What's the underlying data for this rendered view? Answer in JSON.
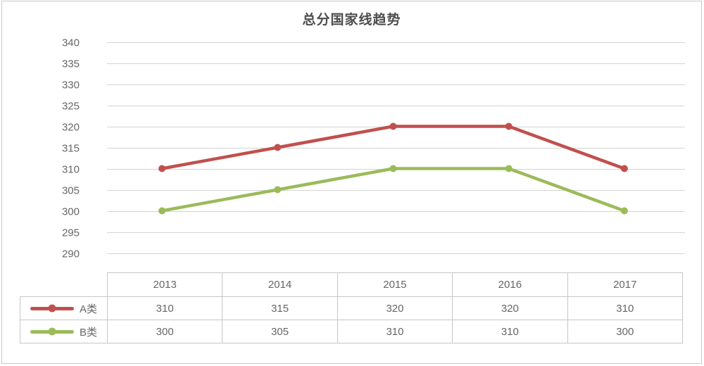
{
  "widget": {
    "title": "总分国家线趋势"
  },
  "chart_data": {
    "type": "line",
    "title": "总分国家线趋势",
    "categories": [
      "2013",
      "2014",
      "2015",
      "2016",
      "2017"
    ],
    "series": [
      {
        "name": "A类",
        "color": "#c0504d",
        "values": [
          310,
          315,
          320,
          320,
          310
        ]
      },
      {
        "name": "B类",
        "color": "#9bbb59",
        "values": [
          300,
          305,
          310,
          310,
          300
        ]
      }
    ],
    "yticks": [
      340,
      335,
      330,
      325,
      320,
      315,
      310,
      305,
      300,
      295,
      290
    ],
    "ylim": [
      290,
      340
    ],
    "ytick_step": 5,
    "grid": true,
    "legend_position": "table-left-column",
    "xlabel": "",
    "ylabel": "",
    "data_labels": false
  },
  "table": {
    "corner_label": "",
    "headers": [
      "2013",
      "2014",
      "2015",
      "2016",
      "2017"
    ],
    "rows": [
      {
        "label": "A类",
        "color": "#c0504d",
        "values": [
          "310",
          "315",
          "320",
          "320",
          "310"
        ]
      },
      {
        "label": "B类",
        "color": "#9bbb59",
        "values": [
          "300",
          "305",
          "310",
          "310",
          "300"
        ]
      }
    ]
  },
  "colors": {
    "series_a": "#c0504d",
    "series_b": "#9bbb59",
    "gridline": "#d4d4d4",
    "tick_text": "#666666",
    "table_border": "#c6c6c6",
    "widget_border": "#c9c9c9",
    "title_text": "#4d4d4d",
    "background": "#ffffff"
  }
}
